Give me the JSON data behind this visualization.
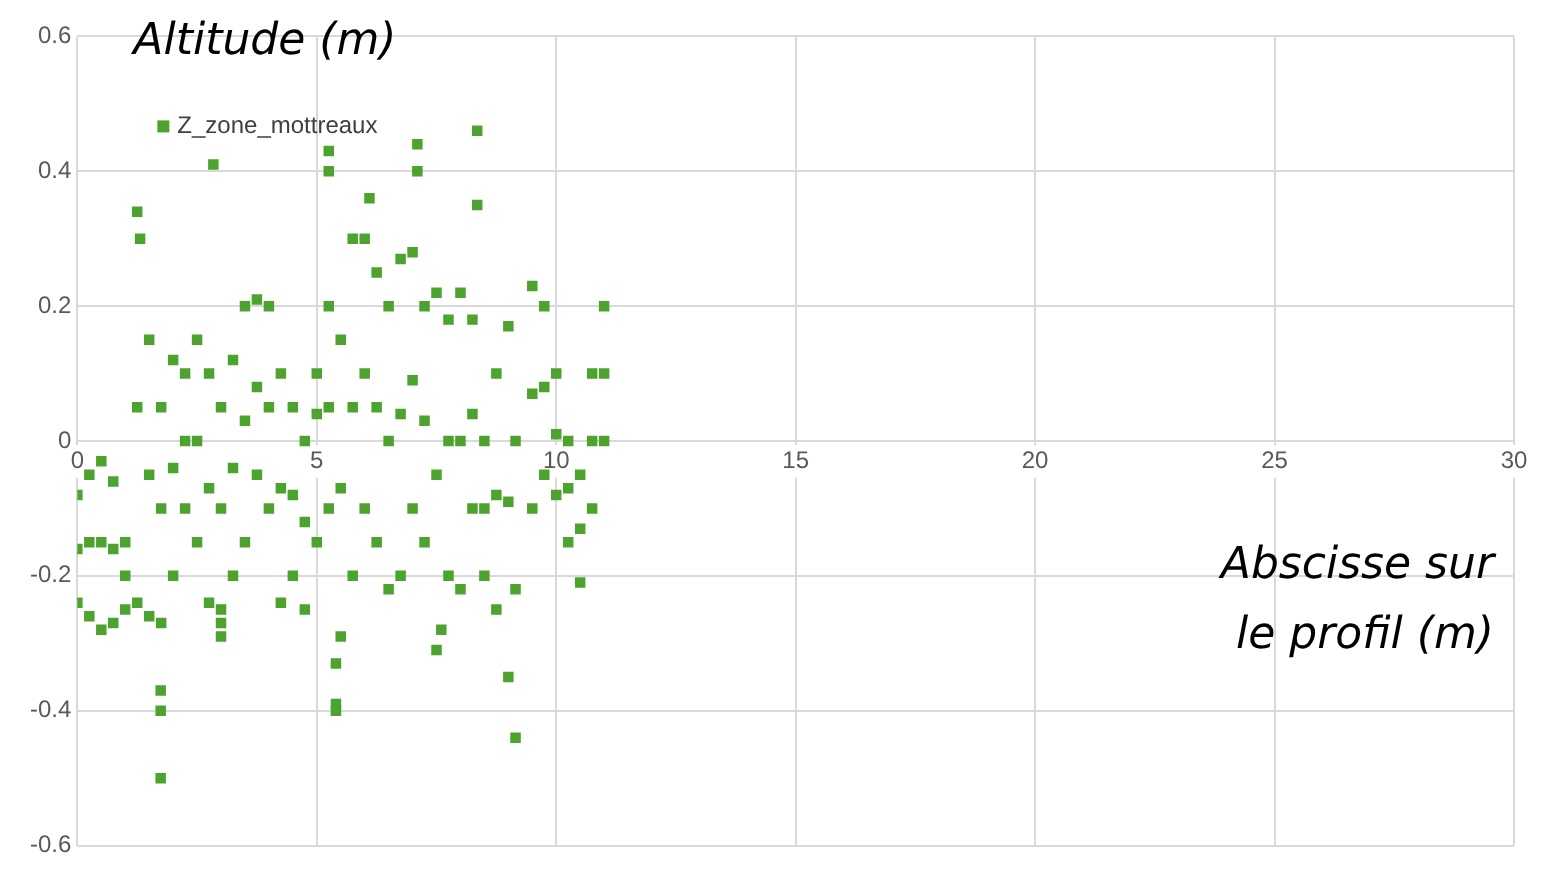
{
  "chart_data": {
    "type": "scatter",
    "xlabel": "Abscisse sur le profil (m)",
    "ylabel": "Altitude (m)",
    "xlim": [
      0,
      30
    ],
    "xticks": [
      0,
      5,
      10,
      15,
      20,
      25,
      30
    ],
    "ylim": [
      -0.6,
      0.6
    ],
    "yticks": [
      -0.6,
      -0.4,
      -0.2,
      0,
      0.2,
      0.4,
      0.6
    ],
    "grid": true,
    "legend": "top left",
    "marker": "square",
    "series": [
      {
        "name": "Z_zone_mottreaux",
        "color": "#4ca32e",
        "x": [
          0,
          0,
          0,
          0.25,
          0.25,
          0.25,
          0.5,
          0.5,
          0.5,
          0.75,
          0.75,
          0.75,
          1,
          1,
          1,
          1.25,
          1.25,
          1.25,
          1.5,
          1.5,
          1.5,
          1.75,
          1.75,
          1.75,
          2,
          2,
          2,
          2.25,
          2.25,
          2.25,
          2.5,
          2.5,
          2.5,
          2.75,
          2.75,
          2.75,
          3,
          3,
          3,
          3.25,
          3.25,
          3.25,
          3.5,
          3.5,
          3.5,
          3.75,
          3.75,
          3.75,
          4,
          4,
          4,
          4.25,
          4.25,
          4.25,
          4.5,
          4.5,
          4.5,
          4.75,
          4.75,
          4.75,
          5,
          5,
          5,
          5.25,
          5.25,
          5.25,
          5.5,
          5.5,
          5.5,
          5.75,
          5.75,
          5.75,
          6,
          6,
          6,
          6.25,
          6.25,
          6.25,
          6.5,
          6.5,
          6.5,
          6.75,
          6.75,
          6.75,
          7,
          7,
          7,
          7.25,
          7.25,
          7.25,
          7.5,
          7.5,
          7.5,
          7.75,
          7.75,
          7.75,
          8,
          8,
          8,
          8.25,
          8.25,
          8.25,
          8.5,
          8.5,
          8.5,
          8.75,
          8.75,
          8.75,
          9,
          9,
          9,
          9.15,
          9.15,
          9.15,
          9.5,
          9.5,
          9.5,
          9.75,
          9.75,
          9.75,
          10,
          10,
          10,
          10.25,
          10.25,
          10.25,
          10.5,
          10.5,
          10.5,
          10.75,
          10.75,
          10.75,
          11,
          11,
          11,
          1.31,
          2.84,
          5.25,
          5.25,
          6.1,
          7.1,
          7.1,
          8.35,
          8.35,
          1.74,
          1.74,
          1.74,
          3,
          3,
          5.4,
          5.4,
          5.4,
          7.6
        ],
        "values": [
          -0.24,
          -0.16,
          -0.08,
          -0.26,
          -0.15,
          -0.05,
          -0.28,
          -0.15,
          -0.03,
          -0.27,
          -0.16,
          -0.06,
          -0.25,
          -0.2,
          -0.15,
          -0.24,
          0.05,
          0.34,
          -0.26,
          -0.05,
          0.15,
          -0.27,
          -0.1,
          0.05,
          -0.2,
          -0.04,
          0.12,
          -0.1,
          0,
          0.1,
          -0.15,
          0,
          0.15,
          -0.24,
          -0.07,
          0.1,
          -0.25,
          -0.1,
          0.05,
          -0.2,
          -0.04,
          0.12,
          -0.15,
          0.03,
          0.2,
          -0.05,
          0.08,
          0.21,
          -0.1,
          0.05,
          0.2,
          -0.24,
          -0.07,
          0.1,
          -0.2,
          -0.08,
          0.05,
          -0.25,
          -0.12,
          0,
          -0.15,
          0.04,
          0.1,
          -0.1,
          0.05,
          0.2,
          -0.29,
          -0.07,
          0.15,
          -0.2,
          0.05,
          0.3,
          -0.1,
          0.1,
          0.3,
          -0.15,
          0.05,
          0.25,
          -0.22,
          0,
          0.2,
          -0.2,
          0.04,
          0.27,
          -0.1,
          0.09,
          0.28,
          -0.15,
          0.03,
          0.2,
          -0.31,
          -0.05,
          0.22,
          -0.2,
          0,
          0.18,
          -0.22,
          0,
          0.22,
          -0.1,
          0.04,
          0.18,
          -0.2,
          -0.1,
          0,
          -0.25,
          -0.08,
          0.1,
          -0.35,
          -0.09,
          0.17,
          -0.44,
          -0.22,
          0,
          -0.1,
          0.07,
          0.23,
          -0.05,
          0.08,
          0.2,
          -0.08,
          0.01,
          0.1,
          -0.15,
          -0.07,
          0,
          -0.21,
          -0.13,
          -0.05,
          -0.1,
          0,
          0.1,
          0,
          0.1,
          0.2,
          0.3,
          0.41,
          0.43,
          0.4,
          0.36,
          0.44,
          0.4,
          0.46,
          0.35,
          -0.37,
          -0.4,
          -0.5,
          -0.27,
          -0.29,
          -0.33,
          -0.39,
          -0.4,
          -0.28
        ]
      }
    ]
  }
}
